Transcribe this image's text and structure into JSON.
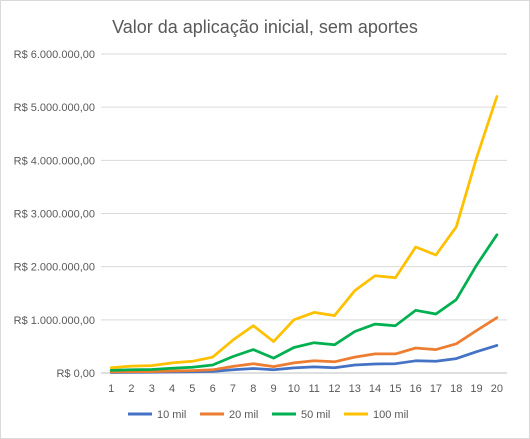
{
  "chart_data": {
    "type": "line",
    "title": "Valor da aplicação inicial, sem aportes",
    "xlabel": "",
    "ylabel": "",
    "x": [
      1,
      2,
      3,
      4,
      5,
      6,
      7,
      8,
      9,
      10,
      11,
      12,
      13,
      14,
      15,
      16,
      17,
      18,
      19,
      20
    ],
    "ylim": [
      0,
      6000000
    ],
    "yticks": [
      0,
      1000000,
      2000000,
      3000000,
      4000000,
      5000000,
      6000000
    ],
    "ytick_labels": [
      "R$ 0,00",
      "R$ 1.000.000,00",
      "R$ 2.000.000,00",
      "R$ 3.000.000,00",
      "R$ 4.000.000,00",
      "R$ 5.000.000,00",
      "R$ 6.000.000,00"
    ],
    "grid": true,
    "legend_position": "bottom",
    "series": [
      {
        "name": "10 mil",
        "color": "#4472c4",
        "values": [
          10000,
          12000,
          13000,
          18000,
          22000,
          30000,
          60000,
          85000,
          60000,
          95000,
          115000,
          100000,
          150000,
          170000,
          175000,
          230000,
          220000,
          270000,
          400000,
          520000
        ]
      },
      {
        "name": "20 mil",
        "color": "#ed7d31",
        "values": [
          20000,
          25000,
          27000,
          37000,
          45000,
          60000,
          125000,
          175000,
          120000,
          190000,
          230000,
          210000,
          300000,
          360000,
          360000,
          470000,
          440000,
          550000,
          800000,
          1040000
        ]
      },
      {
        "name": "50 mil",
        "color": "#00b050",
        "values": [
          50000,
          60000,
          65000,
          90000,
          110000,
          150000,
          310000,
          440000,
          280000,
          480000,
          570000,
          530000,
          780000,
          920000,
          890000,
          1180000,
          1110000,
          1380000,
          2030000,
          2600000
        ]
      },
      {
        "name": "100 mil",
        "color": "#ffc000",
        "values": [
          100000,
          130000,
          140000,
          190000,
          220000,
          300000,
          620000,
          890000,
          590000,
          1000000,
          1140000,
          1080000,
          1550000,
          1830000,
          1790000,
          2370000,
          2220000,
          2750000,
          4050000,
          5200000
        ]
      }
    ]
  }
}
